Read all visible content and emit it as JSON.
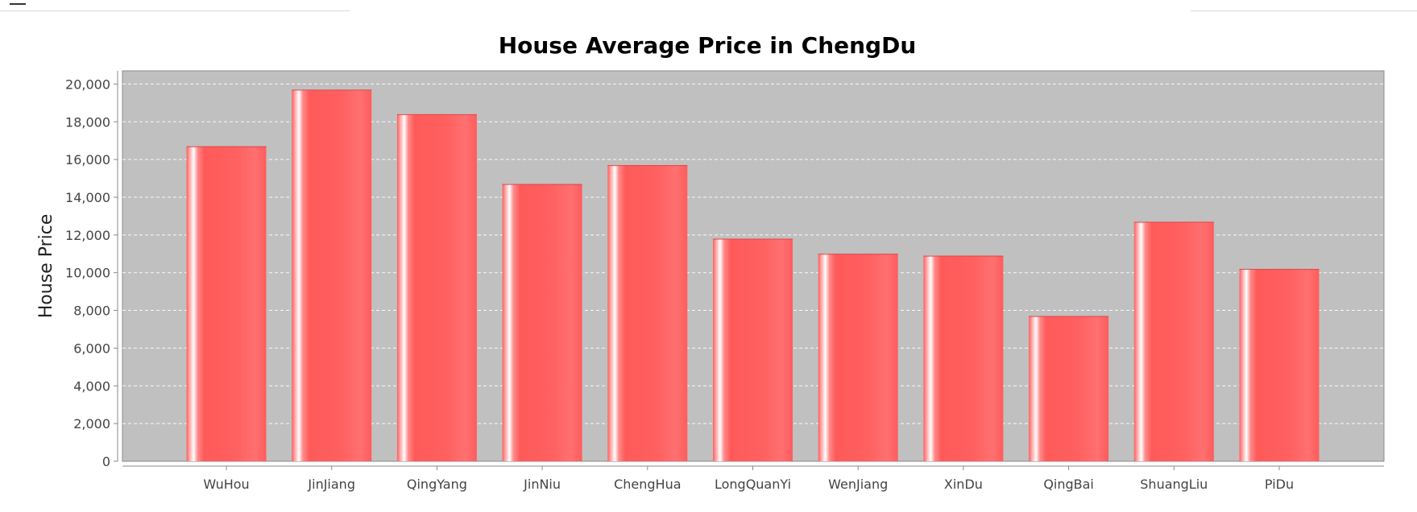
{
  "chart_data": {
    "type": "bar",
    "title": "House Average Price in ChengDu",
    "xlabel": "",
    "ylabel": "House Price",
    "categories": [
      "WuHou",
      "JinJiang",
      "QingYang",
      "JinNiu",
      "ChengHua",
      "LongQuanYi",
      "WenJiang",
      "XinDu",
      "QingBai",
      "ShuangLiu",
      "PiDu"
    ],
    "values": [
      16700,
      19700,
      18400,
      14700,
      15700,
      11800,
      11000,
      10900,
      7700,
      12700,
      10200
    ],
    "ylim": [
      0,
      20700
    ],
    "yticks": [
      0,
      2000,
      4000,
      6000,
      8000,
      10000,
      12000,
      14000,
      16000,
      18000,
      20000
    ],
    "ytick_labels": [
      "0",
      "2,000",
      "4,000",
      "6,000",
      "8,000",
      "10,000",
      "12,000",
      "14,000",
      "16,000",
      "18,000",
      "20,000"
    ],
    "grid": true,
    "legend": "none",
    "colors": {
      "bar": "#ff6262",
      "bar_highlight": "#ffffff",
      "plot_background": "#c0c0c0",
      "gridline": "#ffffff",
      "axis": "#888888"
    }
  }
}
